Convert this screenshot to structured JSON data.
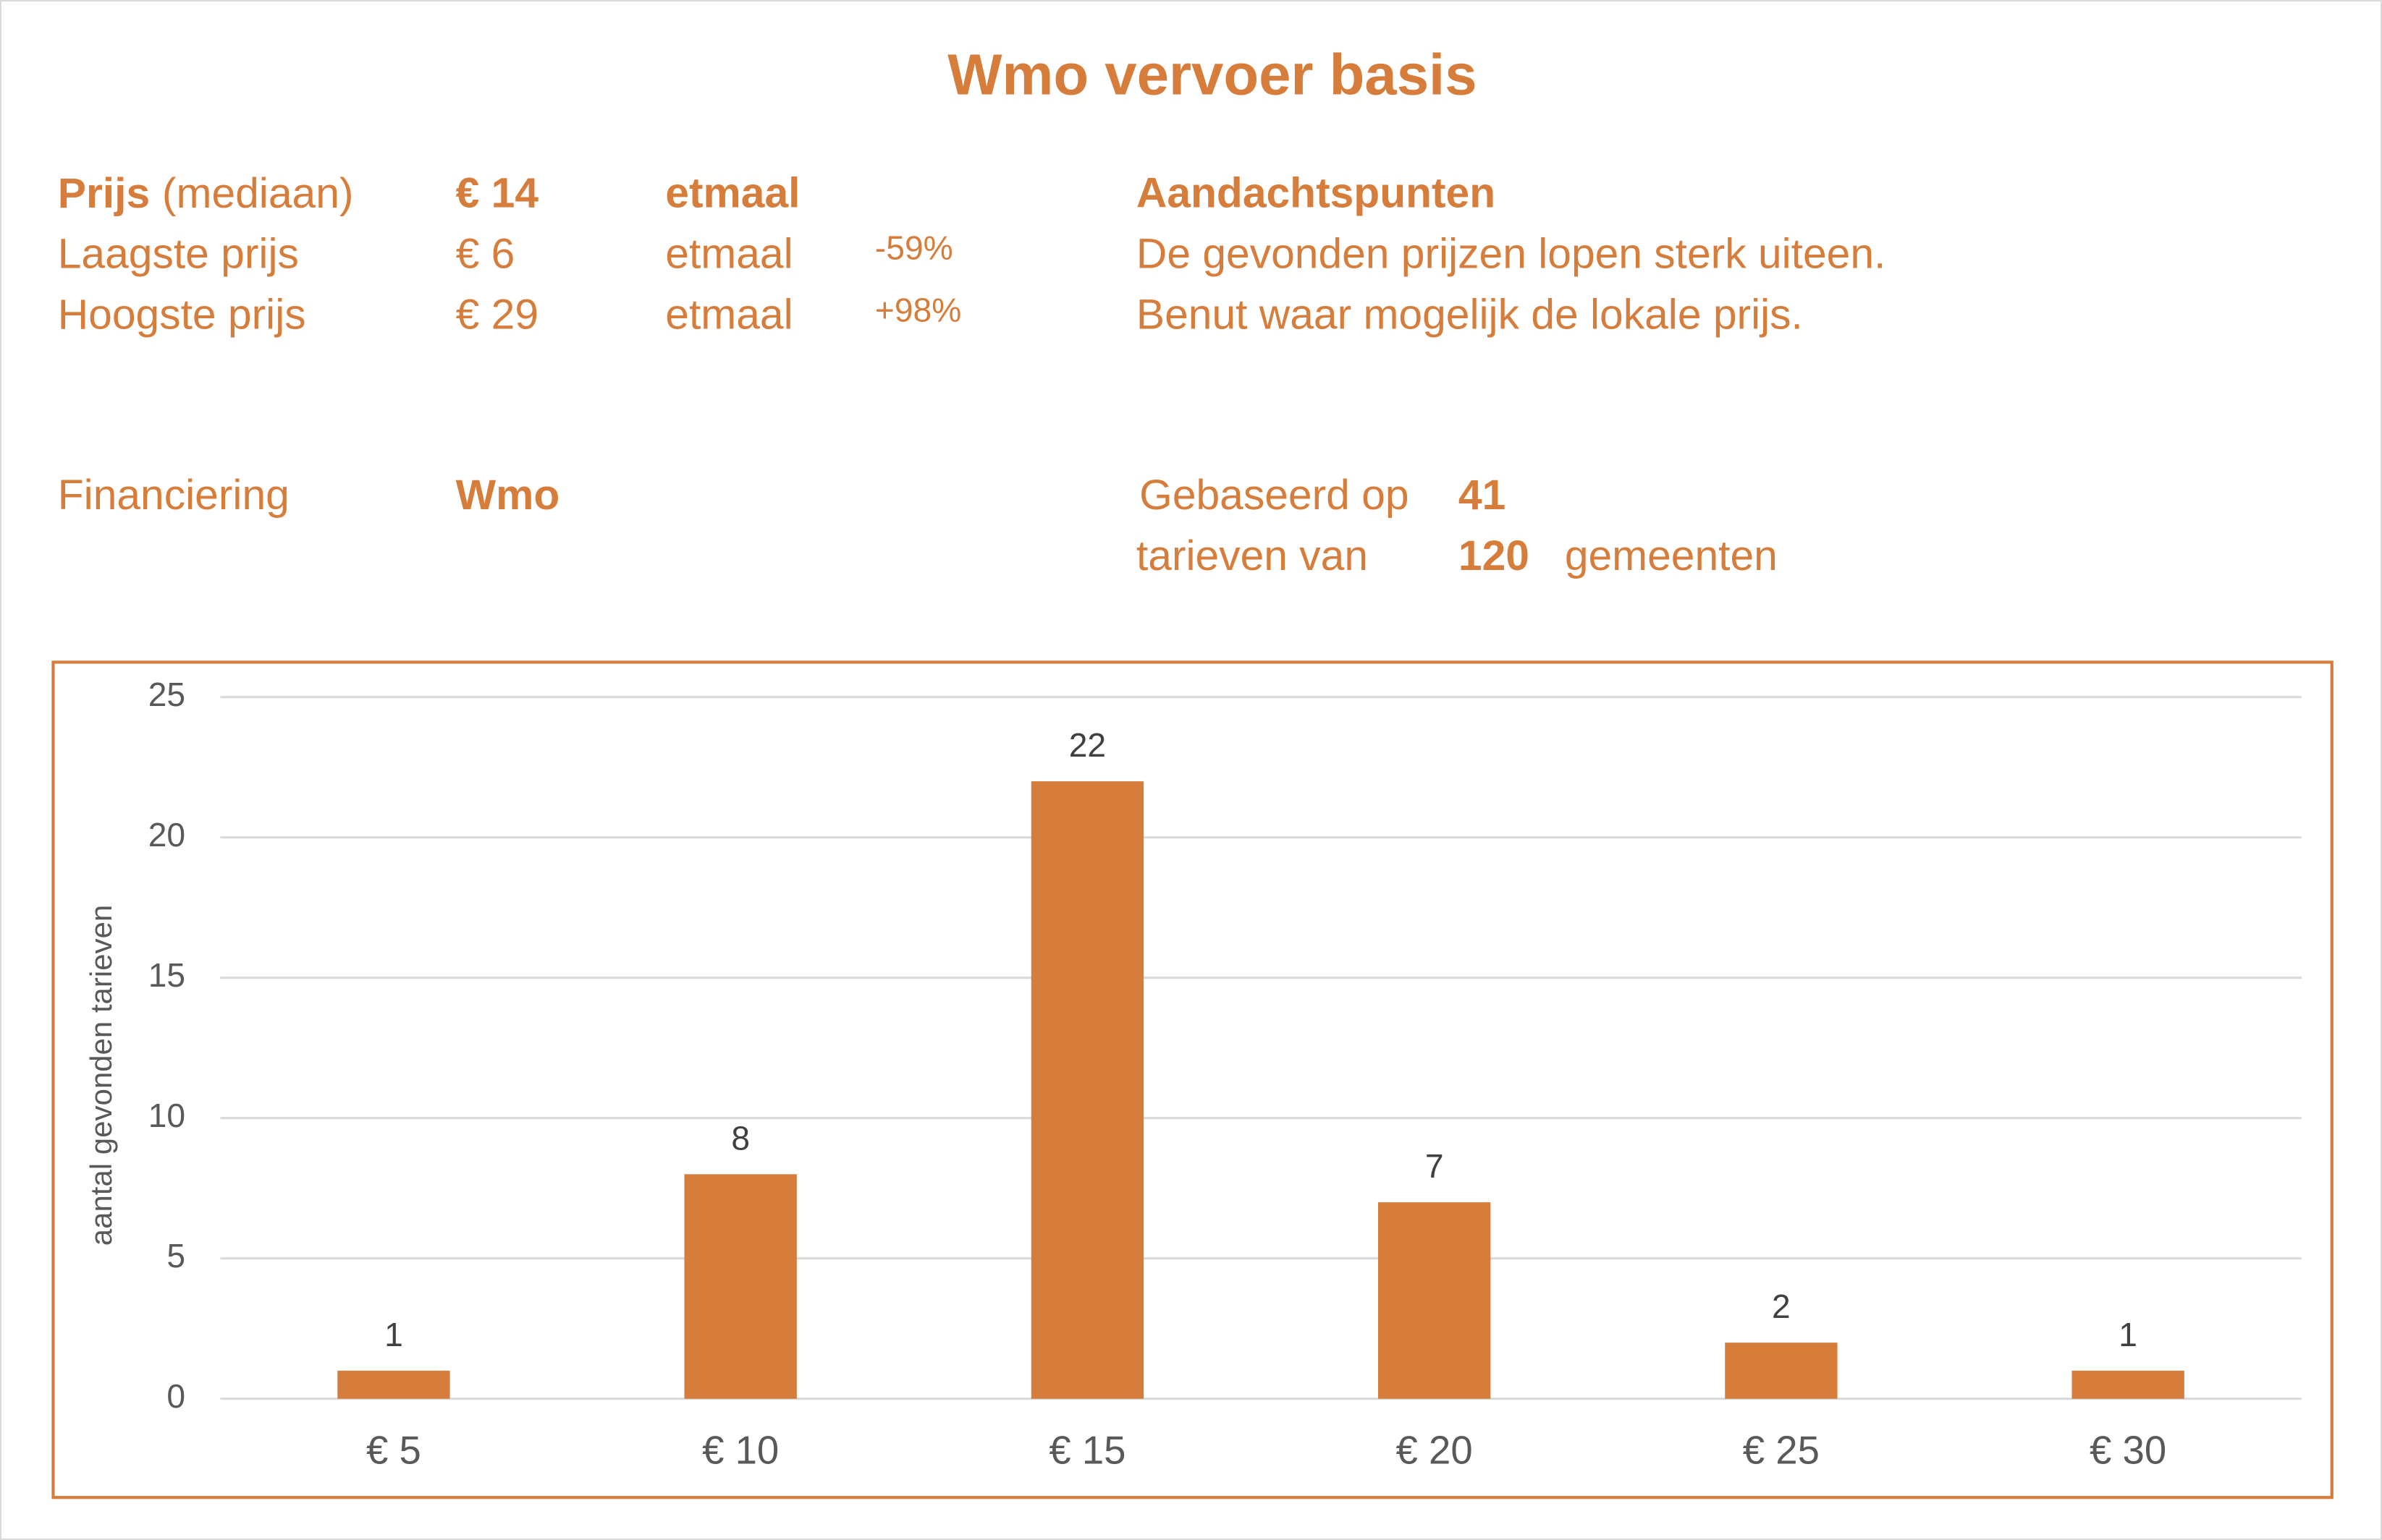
{
  "title": "Wmo vervoer basis",
  "info": {
    "rows": [
      {
        "label": "Prijs",
        "label_note": "(mediaan)",
        "price": "€ 14",
        "unit": "etmaal"
      },
      {
        "label": "Laagste prijs",
        "price": "€ 6",
        "unit": "etmaal",
        "change": "-59%"
      },
      {
        "label": "Hoogste prijs",
        "price": "€ 29",
        "unit": "etmaal",
        "change": "+98%"
      }
    ],
    "notes_title": "Aandachtspunten",
    "notes": [
      "De gevonden prijzen lopen sterk uiteen.",
      "Benut waar mogelijk de lokale prijs."
    ],
    "financing_label": "Financiering",
    "financing": "Wmo",
    "based_on": {
      "text1": "Gebaseerd op",
      "count1": "41",
      "text2": "tarieven van",
      "count2": "120",
      "text3": "gemeenten"
    }
  },
  "chart_data": {
    "type": "bar",
    "y_label": "aantal gevonden tarieven",
    "categories": [
      "€ 5",
      "€ 10",
      "€ 15",
      "€ 20",
      "€ 25",
      "€ 30"
    ],
    "values": [
      1,
      8,
      22,
      7,
      2,
      1
    ],
    "color": "#d67d3b",
    "ylim": [
      0,
      25
    ],
    "yticks": [
      0,
      5,
      10,
      15,
      20,
      25
    ],
    "grid": true
  }
}
